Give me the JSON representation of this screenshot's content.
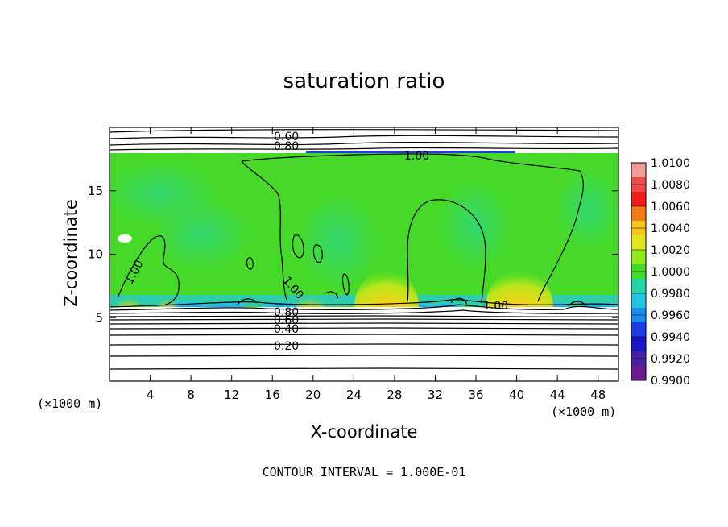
{
  "chart_data": {
    "type": "heatmap",
    "title": "saturation ratio",
    "xlabel": "X-coordinate",
    "ylabel": "Z-coordinate",
    "x_unit": "(×1000 m)",
    "y_unit": "(×1000 m)",
    "xlim": [
      0,
      50
    ],
    "ylim": [
      0,
      20
    ],
    "x_ticks": [
      4,
      8,
      12,
      16,
      20,
      24,
      28,
      32,
      36,
      40,
      44,
      48
    ],
    "y_ticks": [
      5,
      10,
      15
    ],
    "colorbar": {
      "levels": [
        "1.0100",
        "1.0080",
        "1.0060",
        "1.0040",
        "1.0020",
        "1.0000",
        "0.9980",
        "0.9960",
        "0.9940",
        "0.9920",
        "0.9900"
      ],
      "colors": [
        "#f29a9a",
        "#ef4b4b",
        "#f21a1a",
        "#f57a15",
        "#f7c418",
        "#dfe61a",
        "#8ee81a",
        "#3fdc28",
        "#22d6a8",
        "#22c7e3",
        "#1a8ef0",
        "#1a3fe8",
        "#1a14c9",
        "#4a1fa8",
        "#6a1a8e"
      ]
    },
    "contour_labels": [
      "0.60",
      "0.80",
      "1.00",
      "1.00",
      "1.00",
      "1.00",
      "0.80",
      "0.60",
      "0.40",
      "0.20"
    ],
    "contour_interval": "CONTOUR INTERVAL = 1.000E-01"
  }
}
